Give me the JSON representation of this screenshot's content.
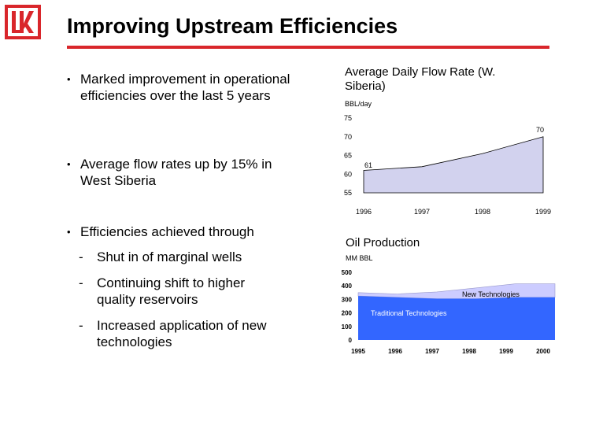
{
  "title": "Improving Upstream Efficiencies",
  "colors": {
    "accent": "#d9262b",
    "flow_fill": "#d2d2ee",
    "traditional": "#3366ff",
    "new_tech": "#ccccff"
  },
  "bullets": [
    {
      "text": "Marked improvement in operational efficiencies over the last 5 years"
    },
    {
      "text": "Average flow rates up by 15% in West Siberia"
    },
    {
      "text": "Efficiencies achieved through"
    }
  ],
  "sub_bullets": [
    {
      "text": "Shut in of marginal wells"
    },
    {
      "text": "Continuing shift to higher quality reservoirs"
    },
    {
      "text": "Increased application of new technologies"
    }
  ],
  "bullet_marker": "•",
  "dash_marker": "-",
  "chart_data": [
    {
      "type": "area",
      "title": "Average Daily Flow Rate (W. Siberia)",
      "ylabel": "BBL/day",
      "x": [
        "1996",
        "1997",
        "1998",
        "1999"
      ],
      "ylim": [
        55,
        75
      ],
      "yticks": [
        55,
        60,
        65,
        70,
        75
      ],
      "series": [
        {
          "values": [
            61,
            62,
            65.5,
            70
          ]
        }
      ],
      "data_labels": [
        {
          "x": "1996",
          "value": "61"
        },
        {
          "x": "1999",
          "value": "70"
        }
      ],
      "grid": false
    },
    {
      "type": "area",
      "title": "Oil Production",
      "ylabel": "MM BBL",
      "x": [
        "1995",
        "1996",
        "1997",
        "1998",
        "1999",
        "2000"
      ],
      "ylim": [
        0,
        500
      ],
      "yticks": [
        0,
        100,
        200,
        300,
        400,
        500
      ],
      "stacked": true,
      "series": [
        {
          "name": "Traditional Technologies",
          "values": [
            325,
            315,
            305,
            305,
            315,
            315
          ]
        },
        {
          "name": "New Technologies",
          "values": [
            25,
            25,
            50,
            80,
            100,
            100
          ]
        }
      ],
      "grid": false
    }
  ]
}
